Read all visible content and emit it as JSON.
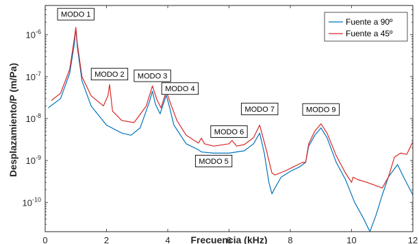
{
  "chart_data": {
    "type": "line",
    "xlabel": "Frecuencia (kHz)",
    "ylabel": "Desplazamiento/P (m/Pa)",
    "xlim": [
      0,
      12
    ],
    "ylim": [
      2e-11,
      5e-06
    ],
    "yscale": "log",
    "grid": false,
    "legend_position": "top-right",
    "xticks": [
      0,
      2,
      4,
      6,
      8,
      10,
      12
    ],
    "xtick_labels": [
      "0",
      "2",
      "4",
      "6",
      "8",
      "10",
      "12"
    ],
    "yticks": [
      1e-10,
      1e-09,
      1e-08,
      1e-07,
      1e-06
    ],
    "ytick_labels": [
      {
        "base": "10",
        "exp": "-10"
      },
      {
        "base": "10",
        "exp": "-9"
      },
      {
        "base": "10",
        "exp": "-8"
      },
      {
        "base": "10",
        "exp": "-7"
      },
      {
        "base": "10",
        "exp": "-6"
      }
    ],
    "series": [
      {
        "name": "Fuente a 90º",
        "color": "#0072BD",
        "x": [
          0.1,
          0.5,
          0.8,
          0.95,
          1.0,
          1.05,
          1.2,
          1.5,
          2.0,
          2.5,
          2.8,
          3.1,
          3.4,
          3.5,
          3.6,
          3.75,
          3.95,
          4.05,
          4.2,
          4.6,
          5.0,
          5.1,
          5.5,
          6.0,
          6.5,
          6.8,
          7.0,
          7.15,
          7.3,
          7.4,
          7.5,
          7.7,
          8.0,
          8.3,
          8.5,
          8.6,
          8.8,
          9.0,
          9.2,
          9.5,
          9.8,
          10.1,
          10.4,
          10.6,
          10.8,
          11.0,
          11.2,
          11.5,
          11.7,
          12.0
        ],
        "y": [
          1.8e-08,
          3e-08,
          1.2e-07,
          6e-07,
          1.4e-06,
          5e-07,
          8e-08,
          2e-08,
          7e-09,
          4.5e-09,
          4e-09,
          6e-09,
          2.5e-08,
          4.5e-08,
          2.2e-08,
          1.3e-08,
          3.6e-08,
          2e-08,
          7e-09,
          2.5e-09,
          1.8e-09,
          1.6e-09,
          1.5e-09,
          1.5e-09,
          1.7e-09,
          2.5e-09,
          4.5e-09,
          1.5e-09,
          3e-10,
          1.6e-10,
          2.2e-10,
          4e-10,
          5.5e-10,
          7e-10,
          9e-10,
          2.2e-09,
          4e-09,
          6e-09,
          3.5e-09,
          9e-10,
          3.5e-10,
          1e-10,
          4e-11,
          2e-11,
          5e-11,
          1.5e-10,
          4e-10,
          8e-10,
          4e-10,
          1.5e-10
        ]
      },
      {
        "name": "Fuente a 45º",
        "color": "#D62728",
        "x": [
          0.2,
          0.5,
          0.8,
          0.95,
          1.0,
          1.05,
          1.2,
          1.5,
          1.9,
          2.05,
          2.1,
          2.2,
          2.5,
          2.9,
          3.3,
          3.5,
          3.65,
          3.78,
          3.95,
          4.1,
          4.3,
          4.6,
          5.0,
          5.1,
          5.2,
          5.5,
          6.0,
          6.1,
          6.25,
          6.5,
          6.8,
          7.0,
          7.2,
          7.4,
          7.5,
          7.8,
          8.1,
          8.4,
          8.5,
          8.6,
          8.8,
          9.0,
          9.2,
          9.5,
          9.8,
          10.0,
          10.05,
          10.2,
          10.5,
          10.8,
          11.0,
          11.2,
          11.4,
          11.6,
          11.8,
          12.0
        ],
        "y": [
          2.7e-08,
          4e-08,
          1.5e-07,
          8e-07,
          1.5e-06,
          6e-07,
          1e-07,
          3.5e-08,
          2e-08,
          3.5e-08,
          6.5e-08,
          1.5e-08,
          9e-09,
          8e-09,
          2e-08,
          6e-08,
          2.8e-08,
          1.8e-08,
          4.5e-08,
          2.2e-08,
          9e-09,
          4e-09,
          2.6e-09,
          3.4e-09,
          2.5e-09,
          2.2e-09,
          2.5e-09,
          3e-09,
          2.2e-09,
          2.4e-09,
          3.5e-09,
          7e-09,
          2e-09,
          5e-10,
          4.5e-10,
          5.5e-10,
          7e-10,
          9e-10,
          9e-10,
          2.5e-09,
          5e-09,
          7.5e-09,
          4.5e-09,
          1.3e-09,
          5e-10,
          3e-10,
          4e-10,
          3.5e-10,
          3e-10,
          2.5e-10,
          2.2e-10,
          4e-10,
          1.2e-09,
          1.5e-09,
          1.4e-09,
          2.8e-09
        ]
      }
    ],
    "annotations": [
      {
        "text": "MODO 1",
        "x": 1.0,
        "y": 3.1e-06
      },
      {
        "text": "MODO 2",
        "x": 2.1,
        "y": 1.15e-07
      },
      {
        "text": "MODO 3",
        "x": 3.5,
        "y": 1.05e-07
      },
      {
        "text": "MODO 4",
        "x": 4.4,
        "y": 5.2e-08
      },
      {
        "text": "MODO 5",
        "x": 5.5,
        "y": 9.7e-10
      },
      {
        "text": "MODO 6",
        "x": 6.0,
        "y": 4.9e-09
      },
      {
        "text": "MODO 7",
        "x": 7.0,
        "y": 1.7e-08
      },
      {
        "text": "MODO 9",
        "x": 9.0,
        "y": 1.65e-08
      }
    ]
  }
}
